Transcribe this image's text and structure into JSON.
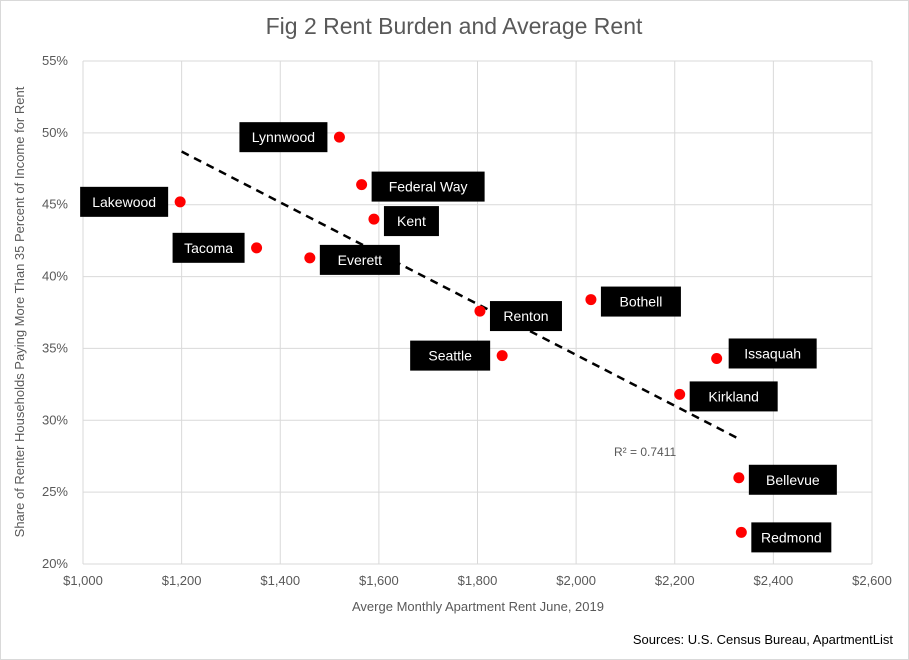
{
  "chart_data": {
    "type": "scatter",
    "title": "Fig 2 Rent Burden and Average Rent",
    "xlabel": "Averge Monthly Apartment  Rent June, 2019",
    "ylabel": "Share of Renter Households Paying More Than 35 Percent of Income for Rent",
    "xlim": [
      1000,
      2600
    ],
    "ylim": [
      20,
      55
    ],
    "x_tick_labels": [
      "$1,000",
      "$1,200",
      "$1,400",
      "$1,600",
      "$1,800",
      "$2,000",
      "$2,200",
      "$2,400",
      "$2,600"
    ],
    "y_tick_labels": [
      "20%",
      "25%",
      "30%",
      "35%",
      "40%",
      "45%",
      "50%",
      "55%"
    ],
    "grid": "vertical and horizontal",
    "legend": "none",
    "points": [
      {
        "label": "Lynnwood",
        "x": 1520,
        "y": 49.7
      },
      {
        "label": "Federal Way",
        "x": 1565,
        "y": 46.4
      },
      {
        "label": "Lakewood",
        "x": 1197,
        "y": 45.2
      },
      {
        "label": "Kent",
        "x": 1590,
        "y": 44.0
      },
      {
        "label": "Tacoma",
        "x": 1352,
        "y": 42.0
      },
      {
        "label": "Everett",
        "x": 1460,
        "y": 41.3
      },
      {
        "label": "Bothell",
        "x": 2030,
        "y": 38.4
      },
      {
        "label": "Renton",
        "x": 1805,
        "y": 37.6
      },
      {
        "label": "Seattle",
        "x": 1850,
        "y": 34.5
      },
      {
        "label": "Issaquah",
        "x": 2285,
        "y": 34.3
      },
      {
        "label": "Kirkland",
        "x": 2210,
        "y": 31.8
      },
      {
        "label": "Bellevue",
        "x": 2330,
        "y": 26.0
      },
      {
        "label": "Redmond",
        "x": 2335,
        "y": 22.2
      }
    ],
    "trendline": {
      "type": "linear",
      "x": [
        1200,
        2325
      ],
      "y": [
        48.7,
        28.8
      ],
      "r_squared_label": "R² = 0.7411"
    },
    "annotations": [
      "Sources: U.S. Census Bureau, ApartmentList"
    ],
    "colors": {
      "points": "#ff0000",
      "trendline": "#000000",
      "callout_bg": "#000000",
      "callout_text": "#ffffff"
    }
  }
}
